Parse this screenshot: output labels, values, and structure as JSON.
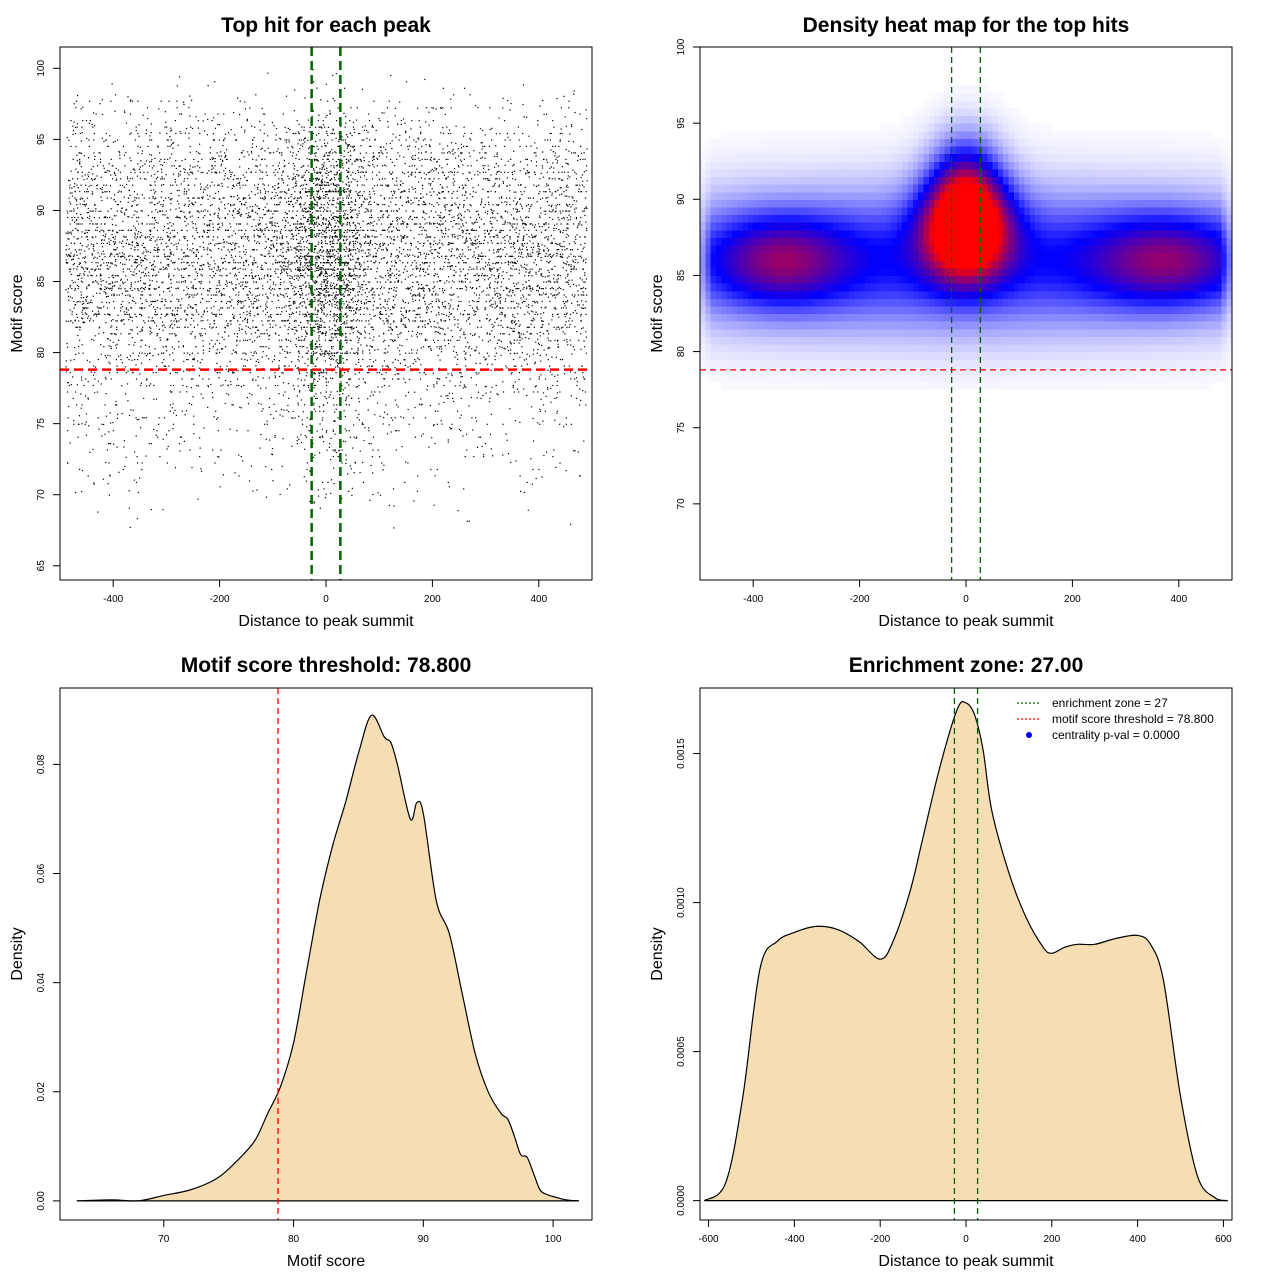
{
  "colors": {
    "threshold_line": "#ff0000",
    "zone_line": "#006400",
    "density_fill": "#f5deb3",
    "heat_low": "#ffffff",
    "heat_mid": "#0000ff",
    "heat_high": "#ff0000",
    "legend_point": "#0000ff"
  },
  "chart_data": [
    {
      "type": "scatter",
      "title": "Top hit for each peak",
      "xlabel": "Distance to peak summit",
      "ylabel": "Motif score",
      "xlim": [
        -500,
        500
      ],
      "ylim": [
        64,
        101.5
      ],
      "xticks": [
        -400,
        -200,
        0,
        200,
        400
      ],
      "yticks": [
        65,
        70,
        75,
        80,
        85,
        90,
        95,
        100
      ],
      "grid": false,
      "hlines": [
        78.8
      ],
      "vlines": [
        -27,
        27
      ],
      "point_count_approx": 9000,
      "score_bands": [
        {
          "center": 86,
          "sd": 3.6,
          "weight": 0.55
        },
        {
          "center": 90,
          "sd": 2.5,
          "weight": 0.15
        },
        {
          "center": 94,
          "sd": 2.2,
          "weight": 0.12
        },
        {
          "center": 81,
          "sd": 2.4,
          "weight": 0.1
        },
        {
          "center": 75,
          "sd": 3.0,
          "weight": 0.08
        }
      ]
    },
    {
      "type": "heatmap",
      "title": "Density heat map for the top hits",
      "xlabel": "Distance to peak summit",
      "ylabel": "Motif score",
      "xlim": [
        -500,
        500
      ],
      "ylim": [
        65,
        100
      ],
      "xticks": [
        -400,
        -200,
        0,
        200,
        400
      ],
      "yticks": [
        70,
        75,
        80,
        85,
        90,
        95,
        100
      ],
      "grid": false,
      "hlines": [
        78.8
      ],
      "vlines": [
        -27,
        27
      ],
      "density_peaks": [
        {
          "x": 0,
          "y": 88,
          "sx": 55,
          "sy": 2.2,
          "weight": 1.0
        },
        {
          "x": 0,
          "y": 90.5,
          "sx": 45,
          "sy": 2.5,
          "weight": 0.55
        },
        {
          "x": -350,
          "y": 86,
          "sx": 90,
          "sy": 2.0,
          "weight": 0.45
        },
        {
          "x": 380,
          "y": 86,
          "sx": 100,
          "sy": 2.0,
          "weight": 0.45
        },
        {
          "x": 0,
          "y": 86,
          "sx": 500,
          "sy": 3.2,
          "weight": 0.42
        }
      ]
    },
    {
      "type": "area",
      "title": "Motif score threshold: 78.800",
      "xlabel": "Motif score",
      "ylabel": "Density",
      "xlim": [
        62,
        103
      ],
      "ylim": [
        -0.0035,
        0.094
      ],
      "xticks": [
        70,
        80,
        90,
        100
      ],
      "yticks": [
        0.0,
        0.02,
        0.04,
        0.06,
        0.08
      ],
      "ytick_labels": [
        "0.00",
        "0.02",
        "0.04",
        "0.06",
        "0.08"
      ],
      "grid": false,
      "vlines": [
        78.8
      ],
      "x": [
        63.3,
        66,
        68,
        70,
        72,
        74,
        75.5,
        77,
        78,
        79,
        80,
        81,
        82,
        83,
        84,
        85,
        86,
        87,
        87.5,
        88,
        89,
        89.5,
        90,
        91,
        92,
        93,
        94,
        95,
        96,
        96.5,
        97,
        97.5,
        98,
        98.5,
        99,
        99.5,
        100,
        101,
        102
      ],
      "y": [
        0.0,
        0.0002,
        0.0,
        0.001,
        0.002,
        0.004,
        0.007,
        0.011,
        0.016,
        0.021,
        0.029,
        0.042,
        0.055,
        0.065,
        0.073,
        0.082,
        0.089,
        0.085,
        0.084,
        0.08,
        0.07,
        0.073,
        0.071,
        0.055,
        0.049,
        0.038,
        0.027,
        0.02,
        0.016,
        0.015,
        0.012,
        0.0085,
        0.008,
        0.005,
        0.002,
        0.0012,
        0.0008,
        0.0002,
        0.0
      ]
    },
    {
      "type": "area",
      "title": "Enrichment zone: 27.00",
      "xlabel": "Distance to peak summit",
      "ylabel": "Density",
      "xlim": [
        -620,
        620
      ],
      "ylim": [
        -6.5e-05,
        0.00172
      ],
      "xticks": [
        -600,
        -400,
        -200,
        0,
        200,
        400,
        600
      ],
      "yticks": [
        0.0,
        0.0005,
        0.001,
        0.0015
      ],
      "ytick_labels": [
        "0.0000",
        "0.0005",
        "0.0010",
        "0.0015"
      ],
      "grid": false,
      "vlines": [
        -27,
        27
      ],
      "x": [
        -610,
        -560,
        -520,
        -480,
        -440,
        -400,
        -350,
        -300,
        -250,
        -200,
        -170,
        -130,
        -100,
        -60,
        -20,
        0,
        20,
        40,
        60,
        100,
        140,
        180,
        200,
        230,
        260,
        300,
        350,
        400,
        430,
        460,
        500,
        540,
        580,
        610
      ],
      "y": [
        0.0,
        6e-05,
        0.00035,
        0.00078,
        0.00087,
        0.0009,
        0.00092,
        0.00091,
        0.00087,
        0.00081,
        0.00087,
        0.00104,
        0.00122,
        0.00146,
        0.00165,
        0.00167,
        0.00163,
        0.00151,
        0.00131,
        0.0011,
        0.00095,
        0.00085,
        0.00083,
        0.00085,
        0.00086,
        0.00086,
        0.00088,
        0.00089,
        0.00086,
        0.00074,
        0.00035,
        8e-05,
        1e-05,
        0.0
      ],
      "legend": {
        "placement": "top-right",
        "entries": [
          {
            "label": "enrichment zone = 27",
            "style": "dotted-line",
            "color": "#006400"
          },
          {
            "label": "motif score threshold = 78.800",
            "style": "dotted-line",
            "color": "#ff0000"
          },
          {
            "label": "centrality p-val = 0.0000",
            "style": "point",
            "color": "#0000ff"
          }
        ]
      }
    }
  ]
}
